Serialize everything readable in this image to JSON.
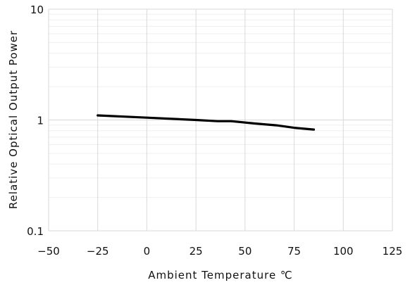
{
  "chart_data": {
    "type": "line",
    "xlabel": "Ambient Temperature  ℃",
    "ylabel": "Relative Optical Output Power",
    "xlim": [
      -50,
      125
    ],
    "ylim": [
      0.1,
      10
    ],
    "yscale": "log",
    "x_ticks": [
      "−50",
      "−25",
      "0",
      "25",
      "50",
      "75",
      "100",
      "125"
    ],
    "x_tick_values": [
      -50,
      -25,
      0,
      25,
      50,
      75,
      100,
      125
    ],
    "y_ticks": [
      "0.1",
      "1",
      "10"
    ],
    "y_tick_values": [
      0.1,
      1,
      10
    ],
    "grid": true,
    "series": [
      {
        "x": [
          -25,
          0,
          25,
          36,
          43,
          55,
          66,
          75,
          85
        ],
        "y": [
          1.1,
          1.05,
          1.0,
          0.975,
          0.975,
          0.93,
          0.895,
          0.85,
          0.82
        ]
      }
    ]
  },
  "colors": {
    "line": "#000000",
    "grid_major": "#d9d9d9",
    "grid_minor": "#efefef"
  }
}
